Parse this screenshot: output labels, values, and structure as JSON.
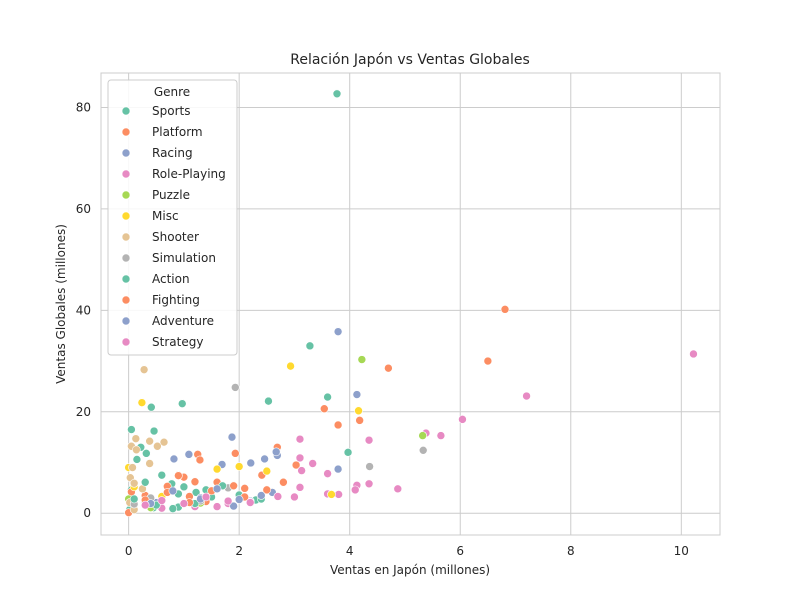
{
  "chart_data": {
    "type": "scatter",
    "title": "Relación Japón vs Ventas Globales",
    "xlabel": "Ventas en Japón (millones)",
    "ylabel": "Ventas Globales (millones)",
    "xlim": [
      -0.5,
      10.7
    ],
    "ylim": [
      -4.3,
      86.8
    ],
    "xticks": [
      0,
      2,
      4,
      6,
      8,
      10
    ],
    "yticks": [
      0,
      20,
      40,
      60,
      80
    ],
    "grid": true,
    "legend_title": "Genre",
    "legend_position": "top-left",
    "series": [
      {
        "name": "Sports",
        "color": "#66c2a5",
        "points": [
          [
            3.77,
            82.7
          ],
          [
            3.28,
            33.0
          ],
          [
            3.6,
            22.9
          ],
          [
            2.53,
            22.1
          ],
          [
            0.97,
            21.6
          ],
          [
            0.41,
            20.9
          ],
          [
            0.05,
            16.5
          ],
          [
            0.46,
            16.2
          ],
          [
            3.97,
            12.0
          ],
          [
            0.32,
            11.8
          ],
          [
            0.22,
            13.0
          ],
          [
            0.15,
            10.6
          ],
          [
            0.78,
            5.8
          ],
          [
            1.22,
            4.1
          ],
          [
            0.6,
            3.1
          ],
          [
            0.3,
            2.2
          ],
          [
            0.1,
            1.5
          ],
          [
            0.05,
            4.6
          ],
          [
            1.8,
            2.1
          ],
          [
            2.3,
            2.6
          ],
          [
            0.9,
            1.2
          ],
          [
            0.02,
            0.7
          ],
          [
            1.5,
            3.2
          ],
          [
            0.45,
            1.1
          ]
        ]
      },
      {
        "name": "Platform",
        "color": "#fc8d62",
        "points": [
          [
            6.81,
            40.2
          ],
          [
            6.5,
            30.0
          ],
          [
            4.7,
            28.6
          ],
          [
            3.79,
            17.4
          ],
          [
            4.18,
            18.3
          ],
          [
            3.54,
            20.6
          ],
          [
            2.69,
            13.0
          ],
          [
            1.25,
            11.6
          ],
          [
            1.29,
            10.5
          ],
          [
            3.03,
            9.5
          ],
          [
            2.41,
            7.5
          ],
          [
            1.93,
            11.8
          ],
          [
            0.0,
            0.1
          ],
          [
            0.7,
            5.3
          ],
          [
            1.0,
            7.1
          ],
          [
            1.6,
            6.1
          ],
          [
            0.3,
            3.5
          ],
          [
            2.8,
            6.1
          ],
          [
            1.1,
            3.3
          ],
          [
            0.05,
            4.2
          ],
          [
            2.1,
            4.9
          ],
          [
            1.4,
            2.3
          ]
        ]
      },
      {
        "name": "Racing",
        "color": "#8da0cb",
        "points": [
          [
            3.79,
            35.8
          ],
          [
            4.13,
            23.4
          ],
          [
            1.87,
            15.0
          ],
          [
            2.46,
            10.7
          ],
          [
            2.69,
            11.4
          ],
          [
            3.79,
            8.7
          ],
          [
            0.82,
            10.7
          ],
          [
            1.09,
            11.6
          ],
          [
            2.21,
            9.9
          ],
          [
            1.69,
            9.6
          ],
          [
            2.67,
            12.1
          ],
          [
            2.2,
            2.4
          ],
          [
            1.3,
            3.0
          ],
          [
            0.5,
            2.1
          ],
          [
            0.1,
            1.8
          ],
          [
            2.6,
            4.1
          ]
        ]
      },
      {
        "name": "Role-Playing",
        "color": "#e78ac3",
        "points": [
          [
            10.22,
            31.4
          ],
          [
            7.2,
            23.1
          ],
          [
            6.04,
            18.5
          ],
          [
            5.65,
            15.3
          ],
          [
            5.38,
            15.8
          ],
          [
            4.35,
            14.4
          ],
          [
            3.1,
            14.6
          ],
          [
            3.1,
            10.9
          ],
          [
            3.33,
            9.8
          ],
          [
            3.13,
            8.4
          ],
          [
            3.6,
            7.8
          ],
          [
            4.13,
            5.5
          ],
          [
            4.87,
            4.8
          ],
          [
            4.35,
            5.8
          ],
          [
            3.1,
            5.1
          ],
          [
            3.0,
            3.2
          ],
          [
            2.7,
            3.3
          ],
          [
            3.6,
            3.8
          ],
          [
            3.8,
            3.7
          ],
          [
            4.1,
            4.6
          ],
          [
            1.2,
            1.3
          ],
          [
            2.2,
            2.2
          ],
          [
            0.6,
            1.0
          ],
          [
            1.8,
            1.9
          ]
        ]
      },
      {
        "name": "Puzzle",
        "color": "#a6d854",
        "points": [
          [
            4.22,
            30.3
          ],
          [
            5.32,
            15.3
          ],
          [
            0.0,
            2.8
          ],
          [
            0.4,
            1.1
          ],
          [
            1.3,
            2.0
          ]
        ]
      },
      {
        "name": "Misc",
        "color": "#ffd92f",
        "points": [
          [
            2.93,
            29.0
          ],
          [
            4.16,
            20.2
          ],
          [
            0.24,
            21.8
          ],
          [
            3.67,
            3.7
          ],
          [
            0.0,
            9.0
          ],
          [
            2.0,
            9.2
          ],
          [
            2.5,
            8.3
          ],
          [
            1.6,
            8.7
          ],
          [
            0.6,
            3.3
          ],
          [
            0.1,
            5.2
          ]
        ]
      },
      {
        "name": "Shooter",
        "color": "#e5c494",
        "points": [
          [
            0.28,
            28.3
          ],
          [
            0.13,
            14.7
          ],
          [
            0.38,
            14.2
          ],
          [
            0.64,
            14.0
          ],
          [
            0.52,
            13.2
          ],
          [
            0.05,
            13.2
          ],
          [
            0.14,
            12.5
          ],
          [
            0.38,
            9.8
          ],
          [
            0.07,
            9.0
          ],
          [
            0.03,
            7.0
          ],
          [
            0.1,
            5.9
          ],
          [
            0.25,
            4.8
          ],
          [
            0.4,
            3.0
          ],
          [
            0.02,
            2.1
          ],
          [
            0.1,
            0.7
          ]
        ]
      },
      {
        "name": "Simulation",
        "color": "#b3b3b3",
        "points": [
          [
            1.93,
            24.8
          ],
          [
            5.33,
            12.4
          ],
          [
            4.36,
            9.2
          ],
          [
            0.9,
            7.5
          ],
          [
            1.8,
            5.0
          ],
          [
            0.4,
            3.0
          ],
          [
            0.1,
            1.8
          ],
          [
            1.3,
            2.4
          ]
        ]
      },
      {
        "name": "Action",
        "color": "#66c2a5",
        "points": [
          [
            0.6,
            7.5
          ],
          [
            1.0,
            5.2
          ],
          [
            1.4,
            4.6
          ],
          [
            0.3,
            6.1
          ],
          [
            2.0,
            3.6
          ],
          [
            1.7,
            5.4
          ],
          [
            0.9,
            3.8
          ],
          [
            0.1,
            2.8
          ],
          [
            0.5,
            1.6
          ],
          [
            1.2,
            1.9
          ],
          [
            2.4,
            2.8
          ],
          [
            0.8,
            0.9
          ]
        ]
      },
      {
        "name": "Fighting",
        "color": "#fc8d62",
        "points": [
          [
            1.2,
            6.2
          ],
          [
            1.9,
            5.4
          ],
          [
            0.9,
            7.4
          ],
          [
            0.7,
            4.1
          ],
          [
            2.1,
            3.2
          ],
          [
            1.5,
            4.4
          ],
          [
            0.3,
            2.6
          ],
          [
            1.1,
            2.1
          ],
          [
            2.5,
            4.6
          ]
        ]
      },
      {
        "name": "Adventure",
        "color": "#8da0cb",
        "points": [
          [
            1.6,
            4.8
          ],
          [
            2.4,
            3.5
          ],
          [
            0.8,
            4.4
          ],
          [
            1.3,
            2.8
          ],
          [
            0.4,
            1.9
          ],
          [
            2.0,
            2.7
          ],
          [
            1.9,
            1.4
          ]
        ]
      },
      {
        "name": "Strategy",
        "color": "#e78ac3",
        "points": [
          [
            1.4,
            3.2
          ],
          [
            1.8,
            2.4
          ],
          [
            1.0,
            1.9
          ],
          [
            0.6,
            2.5
          ],
          [
            2.2,
            2.1
          ],
          [
            1.6,
            1.3
          ],
          [
            0.3,
            1.6
          ]
        ]
      }
    ]
  }
}
